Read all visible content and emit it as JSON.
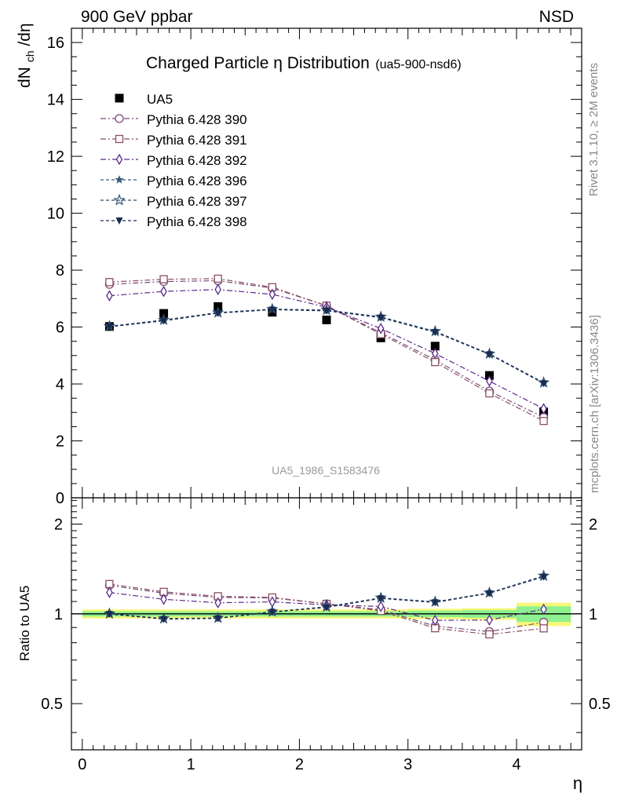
{
  "header": {
    "left": "900 GeV ppbar",
    "right": "NSD"
  },
  "side_texts": {
    "rivet": "Rivet 3.1.10, ≥ 2M events",
    "mcplots": "mcplots.cern.ch [arXiv:1306.3436]"
  },
  "chart_data": {
    "type": "scatter",
    "title": "Charged Particle η Distribution",
    "title_sub": "(ua5-900-nsd6)",
    "watermark": "UA5_1986_S1583476",
    "ylabel": "dN_ch/dη",
    "ylabel_main": "dN",
    "ylabel_sub": "ch",
    "ylabel_end": "/dη",
    "xlabel": "η",
    "xlim": [
      -0.1,
      4.6
    ],
    "ylim": [
      0,
      16.5
    ],
    "x_ticks": [
      0,
      1,
      2,
      3,
      4
    ],
    "x_tick_labels": [
      "0",
      "1",
      "2",
      "3",
      "4"
    ],
    "y_ticks": [
      0,
      2,
      4,
      6,
      8,
      10,
      12,
      14,
      16
    ],
    "y_tick_labels": [
      "0",
      "2",
      "4",
      "6",
      "8",
      "10",
      "12",
      "14",
      "16"
    ],
    "x": [
      0.25,
      0.75,
      1.25,
      1.75,
      2.25,
      2.75,
      3.25,
      3.75,
      4.25
    ],
    "legend_position": "top-left",
    "series": [
      {
        "name": "UA5",
        "color": "#000000",
        "marker": "square-filled",
        "line": "none",
        "values": [
          6.02,
          6.48,
          6.72,
          6.52,
          6.25,
          5.62,
          5.33,
          4.3,
          3.02
        ]
      },
      {
        "name": "Pythia 6.428 390",
        "color": "#7a4a7a",
        "marker": "circle-open",
        "line": "dashdot",
        "values": [
          7.5,
          7.6,
          7.63,
          7.37,
          6.75,
          5.8,
          4.85,
          3.75,
          2.83
        ]
      },
      {
        "name": "Pythia 6.428 391",
        "color": "#8a5060",
        "marker": "square-open",
        "line": "dashdot",
        "values": [
          7.58,
          7.68,
          7.7,
          7.4,
          6.75,
          5.75,
          4.77,
          3.67,
          2.7
        ]
      },
      {
        "name": "Pythia 6.428 392",
        "color": "#5a2a8a",
        "marker": "diamond-open",
        "line": "dashdot",
        "values": [
          7.1,
          7.25,
          7.32,
          7.15,
          6.7,
          5.95,
          5.07,
          4.1,
          3.13
        ]
      },
      {
        "name": "Pythia 6.428 396",
        "color": "#3a5a7a",
        "marker": "star-filled",
        "line": "dashed",
        "values": [
          6.02,
          6.24,
          6.5,
          6.62,
          6.58,
          6.35,
          5.84,
          5.05,
          4.03
        ]
      },
      {
        "name": "Pythia 6.428 397",
        "color": "#2a4a6a",
        "marker": "star-open",
        "line": "dashed",
        "values": [
          6.03,
          6.25,
          6.51,
          6.63,
          6.6,
          6.36,
          5.85,
          5.06,
          4.05
        ]
      },
      {
        "name": "Pythia 6.428 398",
        "color": "#1a2a50",
        "marker": "triangle-down-filled",
        "line": "dashed",
        "values": [
          6.01,
          6.22,
          6.49,
          6.61,
          6.57,
          6.33,
          5.82,
          5.04,
          4.02
        ]
      }
    ],
    "ratio": {
      "ylabel": "Ratio to UA5",
      "scale": "log",
      "ylim": [
        0.35,
        2.45
      ],
      "y_ticks": [
        0.5,
        1,
        2
      ],
      "y_tick_labels": [
        "0.5",
        "1",
        "2"
      ],
      "band_yellow_frac": [
        0.035,
        0.035,
        0.035,
        0.035,
        0.035,
        0.035,
        0.04,
        0.045,
        0.09
      ],
      "band_green_frac": [
        0.02,
        0.02,
        0.02,
        0.02,
        0.02,
        0.02,
        0.025,
        0.03,
        0.06
      ]
    }
  }
}
